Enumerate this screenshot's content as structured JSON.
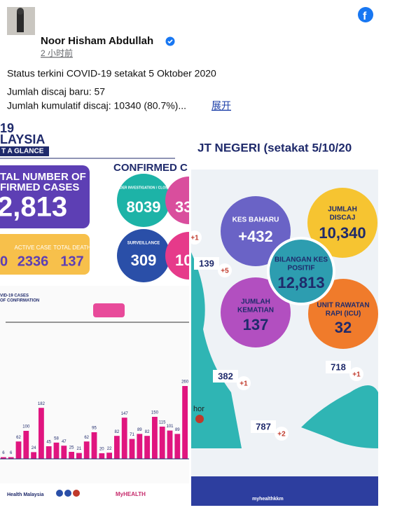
{
  "post": {
    "author": "Noor Hisham Abdullah",
    "time": "2 小时前",
    "lines": [
      "Status terkini COVID-19 setakat 5 Oktober 2020",
      "Jumlah discaj baru: 57",
      "Jumlah kumulatif discaj: 10340 (80.7%)..."
    ],
    "more": "展开"
  },
  "image_left": {
    "heading": [
      "19",
      "LAYSIA",
      "T A GLANCE"
    ],
    "total": [
      "TAL NUMBER OF",
      "FIRMED CASES",
      "2,813"
    ],
    "confirmed": "CONFIRMED C",
    "pui_label": "PATIENT UNDER INVESTIGATION / CLOSE CONTACT",
    "pui": "8039",
    "sri": "33",
    "surveillance_label": "SURVEILLANCE",
    "surveillance": "309",
    "other": "10",
    "strip": [
      "0",
      "ACTIVE CASE",
      "2336",
      "TOTAL DEATH",
      "137"
    ],
    "chart_title": [
      "VID-19 CASES",
      "OF CONFIRMATION"
    ],
    "daily_cases": [
      6,
      6,
      62,
      100,
      24,
      182,
      45,
      58,
      47,
      25,
      21,
      62,
      95,
      20,
      22,
      82,
      147,
      71,
      89,
      82,
      150,
      115,
      101,
      89,
      260
    ],
    "footer": [
      "Health Malaysia",
      "MyHEALTH"
    ]
  },
  "image_right": {
    "title": "JT NEGERI (setakat 5/10/20",
    "new_cases": [
      "KES BAHARU",
      "+432"
    ],
    "discharged": [
      "JUMLAH",
      "DISCAJ",
      "10,340"
    ],
    "positive": [
      "BILANGAN KES",
      "POSITIF",
      "12,813"
    ],
    "deaths": [
      "JUMLAH",
      "KEMATIAN",
      "137"
    ],
    "icu": [
      "UNIT RAWATAN",
      "RAPI (ICU)",
      "32"
    ],
    "states": [
      {
        "total": "139",
        "new": "+5"
      },
      {
        "total": "382",
        "new": "+1"
      },
      {
        "total": "787",
        "new": "+2"
      },
      {
        "total": "718",
        "new": "+1"
      }
    ],
    "edge_new": "+1",
    "place": "hor",
    "footer": "myhealthkkm"
  }
}
